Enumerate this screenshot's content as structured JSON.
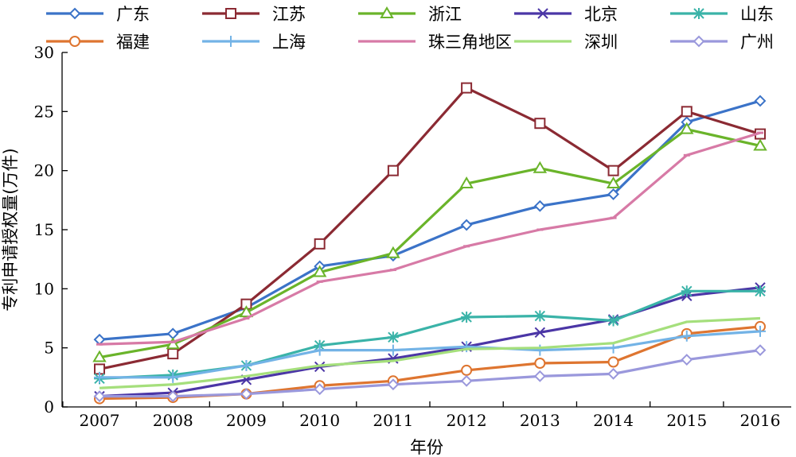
{
  "chart_data": {
    "type": "line",
    "title": "",
    "xlabel": "年份",
    "ylabel": "专利申请授权量(万件)",
    "ylim": [
      0,
      30
    ],
    "yticks": [
      0,
      5,
      10,
      15,
      20,
      25,
      30
    ],
    "x": [
      "2007",
      "2008",
      "2009",
      "2010",
      "2011",
      "2012",
      "2013",
      "2014",
      "2015",
      "2016"
    ],
    "grid": false,
    "legend_position": "top",
    "series": [
      {
        "name": "广东",
        "color": "#3b73c8",
        "marker": "diamond",
        "values": [
          5.7,
          6.2,
          8.4,
          11.9,
          12.8,
          15.4,
          17.0,
          18.0,
          24.1,
          25.9
        ]
      },
      {
        "name": "江苏",
        "color": "#8b2a33",
        "marker": "square",
        "values": [
          3.2,
          4.5,
          8.7,
          13.8,
          20.0,
          27.0,
          24.0,
          20.0,
          25.0,
          23.1
        ]
      },
      {
        "name": "浙江",
        "color": "#6ab42a",
        "marker": "triangle",
        "values": [
          4.2,
          5.3,
          8.0,
          11.4,
          13.0,
          18.9,
          20.2,
          18.9,
          23.5,
          22.1
        ]
      },
      {
        "name": "北京",
        "color": "#4b36a6",
        "marker": "x",
        "values": [
          0.9,
          1.2,
          2.3,
          3.4,
          4.1,
          5.1,
          6.3,
          7.4,
          9.4,
          10.1
        ]
      },
      {
        "name": "山东",
        "color": "#3ab3a8",
        "marker": "asterisk",
        "values": [
          2.4,
          2.7,
          3.5,
          5.2,
          5.9,
          7.6,
          7.7,
          7.3,
          9.8,
          9.8
        ]
      },
      {
        "name": "福建",
        "color": "#de7530",
        "marker": "circle",
        "values": [
          0.7,
          0.8,
          1.1,
          1.8,
          2.2,
          3.1,
          3.7,
          3.8,
          6.2,
          6.8
        ]
      },
      {
        "name": "上海",
        "color": "#73b3e6",
        "marker": "plus",
        "values": [
          2.5,
          2.5,
          3.5,
          4.8,
          4.8,
          5.1,
          4.8,
          5.0,
          6.0,
          6.4
        ]
      },
      {
        "name": "珠三角地区",
        "color": "#d77aa6",
        "marker": "dash",
        "values": [
          5.3,
          5.5,
          7.5,
          10.6,
          11.6,
          13.6,
          15.0,
          16.0,
          21.3,
          23.2
        ]
      },
      {
        "name": "深圳",
        "color": "#a5df7c",
        "marker": "none",
        "values": [
          1.6,
          1.9,
          2.6,
          3.5,
          3.9,
          4.9,
          5.0,
          5.4,
          7.2,
          7.5
        ]
      },
      {
        "name": "广州",
        "color": "#9a98dc",
        "marker": "diamond",
        "values": [
          0.9,
          0.9,
          1.1,
          1.5,
          1.9,
          2.2,
          2.6,
          2.8,
          4.0,
          4.8
        ]
      }
    ]
  }
}
